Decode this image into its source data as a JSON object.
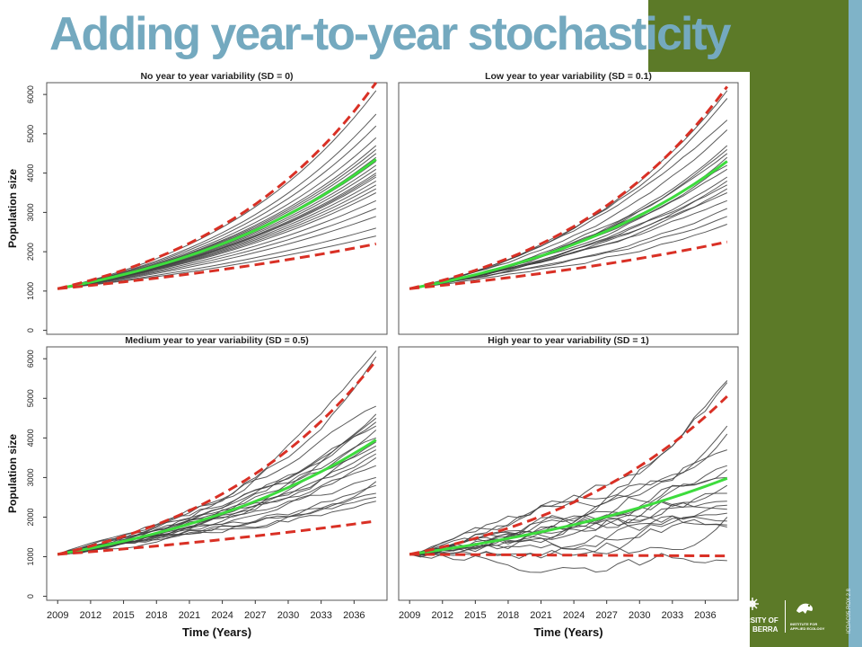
{
  "slide": {
    "title": "Adding year-to-year stochasticity",
    "accent_green": "#5c7a28",
    "accent_blue": "#7fb3c8",
    "logo_left_lines": [
      "RSITY OF",
      "BERRA"
    ],
    "logo_right_lines": [
      "INSTITUTE FOR",
      "APPLIED ECOLOGY"
    ],
    "side_code": "ICDAC05.ROX 2.8"
  },
  "chart_data": [
    {
      "type": "line",
      "title": "No year to year variability (SD = 0)",
      "xlabel": "",
      "ylabel": "Population size",
      "xlim": [
        2008,
        2039
      ],
      "ylim": [
        -100,
        6300
      ],
      "x_ticks": [],
      "y_ticks": [
        "0",
        "1000",
        "2000",
        "3000",
        "4000",
        "5000",
        "6000"
      ],
      "start": 1060,
      "finals": [
        6100,
        5500,
        5200,
        4900,
        4700,
        4600,
        4500,
        4400,
        4300,
        4200,
        4100,
        4000,
        3950,
        3900,
        3800,
        3700,
        3600,
        3500,
        3300,
        3100,
        2900,
        2600,
        2400
      ],
      "mean_final": 4350,
      "upper_final": 6300,
      "lower_final": 2200,
      "noise": 0
    },
    {
      "type": "line",
      "title": "Low year to year variability (SD = 0.1)",
      "xlabel": "",
      "ylabel": "",
      "xlim": [
        2008,
        2039
      ],
      "ylim": [
        -100,
        6300
      ],
      "x_ticks": [],
      "y_ticks": [],
      "start": 1060,
      "finals": [
        6100,
        5900,
        5350,
        5100,
        4700,
        4600,
        4500,
        4400,
        4300,
        4200,
        4100,
        3900,
        3800,
        3700,
        3600,
        3500,
        3300,
        3100,
        2900,
        2700
      ],
      "mean_final": 4300,
      "upper_final": 6200,
      "lower_final": 2250,
      "noise": 30
    },
    {
      "type": "line",
      "title": "Medium year to year variability (SD = 0.5)",
      "xlabel": "Time (Years)",
      "ylabel": "Population size",
      "xlim": [
        2008,
        2039
      ],
      "ylim": [
        -100,
        6300
      ],
      "x_ticks": [
        "2009",
        "2012",
        "2015",
        "2018",
        "2021",
        "2024",
        "2027",
        "2030",
        "2033",
        "2036"
      ],
      "y_ticks": [
        "0",
        "1000",
        "2000",
        "3000",
        "4000",
        "5000",
        "6000"
      ],
      "start": 1060,
      "finals": [
        6200,
        6050,
        4800,
        4600,
        4500,
        4400,
        4300,
        4200,
        4000,
        3900,
        3800,
        3700,
        3600,
        3500,
        3300,
        3000,
        2900,
        2800,
        2600,
        2500,
        2400
      ],
      "mean_final": 3950,
      "upper_final": 5950,
      "lower_final": 1900,
      "noise": 90
    },
    {
      "type": "line",
      "title": "High year to year variability (SD = 1)",
      "xlabel": "Time (Years)",
      "ylabel": "",
      "xlim": [
        2008,
        2039
      ],
      "ylim": [
        -100,
        6300
      ],
      "x_ticks": [
        "2009",
        "2012",
        "2015",
        "2018",
        "2021",
        "2024",
        "2027",
        "2030",
        "2033",
        "2036"
      ],
      "y_ticks": [],
      "start": 1060,
      "finals": [
        5450,
        5400,
        4300,
        4100,
        3700,
        3300,
        3200,
        3000,
        2800,
        2600,
        2400,
        2300,
        2200,
        2100,
        2000,
        1900,
        1800,
        1750,
        900
      ],
      "mean_final": 2980,
      "upper_final": 5050,
      "lower_final": 1020,
      "noise": 200
    }
  ]
}
